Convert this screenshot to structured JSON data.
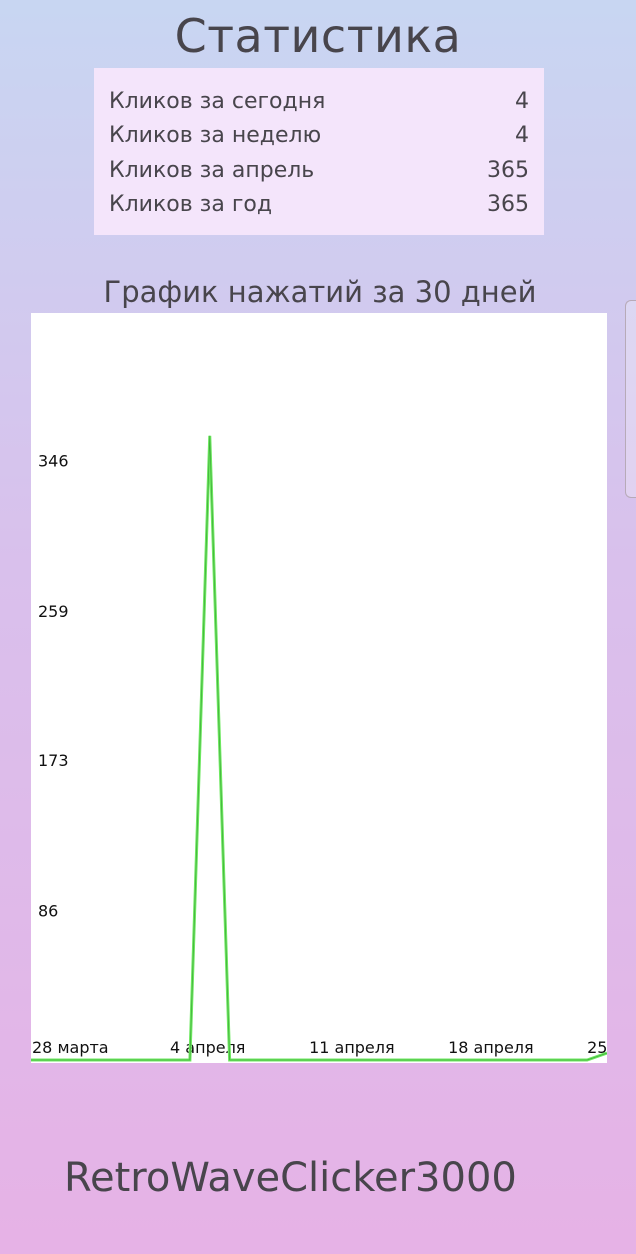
{
  "header": {
    "title": "Статистика"
  },
  "stats": [
    {
      "label": "Кликов за сегодня",
      "value": "4"
    },
    {
      "label": "Кликов за неделю",
      "value": "4"
    },
    {
      "label": "Кликов за апрель",
      "value": "365"
    },
    {
      "label": "Кликов за год",
      "value": "365"
    }
  ],
  "chart_section": {
    "title": "График нажатий за 30 дней"
  },
  "chart_data": {
    "type": "line",
    "title": "График нажатий за 30 дней",
    "xlabel": "",
    "ylabel": "",
    "x_tick_labels": [
      "28 марта",
      "4 апреля",
      "11 апреля",
      "18 апреля",
      "25"
    ],
    "y_tick_labels": [
      "346",
      "259",
      "173",
      "86"
    ],
    "y_ticks": [
      346,
      259,
      173,
      86
    ],
    "ylim": [
      0,
      432
    ],
    "grid": false,
    "legend": "none",
    "series": [
      {
        "color": "#6ee860",
        "x": [
          "28 марта",
          "29 марта",
          "30 марта",
          "31 марта",
          "1 апреля",
          "2 апреля",
          "3 апреля",
          "4 апреля",
          "5 апреля",
          "6 апреля",
          "7 апреля",
          "8 апреля",
          "9 апреля",
          "10 апреля",
          "11 апреля",
          "12 апреля",
          "13 апреля",
          "14 апреля",
          "15 апреля",
          "16 апреля",
          "17 апреля",
          "18 апреля",
          "19 апреля",
          "20 апреля",
          "21 апреля",
          "22 апреля",
          "23 апреля",
          "24 апреля",
          "25 апреля",
          "26 апреля"
        ],
        "values": [
          0,
          0,
          0,
          0,
          0,
          0,
          0,
          0,
          0,
          361,
          0,
          0,
          0,
          0,
          0,
          0,
          0,
          0,
          0,
          0,
          0,
          0,
          0,
          0,
          0,
          0,
          0,
          0,
          0,
          4
        ]
      }
    ]
  },
  "footer": {
    "app_name": "RetroWaveClicker3000"
  }
}
